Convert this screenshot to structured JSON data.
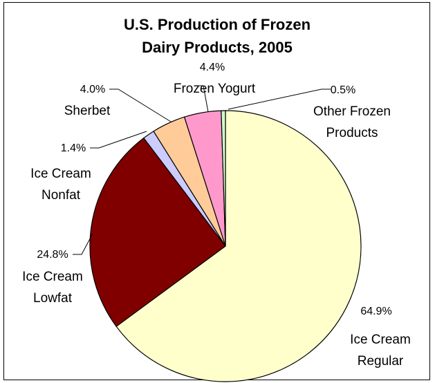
{
  "chart_data": {
    "type": "pie",
    "title": "U.S. Production of Frozen Dairy Products, 2005",
    "title_lines": [
      "U.S. Production of Frozen",
      "Dairy Products, 2005"
    ],
    "start_angle_deg": 0,
    "direction": "clockwise",
    "slices": [
      {
        "label": "Ice Cream Regular",
        "label_lines": [
          "Ice Cream",
          "Regular"
        ],
        "value": 64.9,
        "pct_label": "64.9%",
        "color": "#FFFFCC"
      },
      {
        "label": "Ice Cream Lowfat",
        "label_lines": [
          "Ice Cream",
          "Lowfat"
        ],
        "value": 24.8,
        "pct_label": "24.8%",
        "color": "#800000"
      },
      {
        "label": "Ice Cream Nonfat",
        "label_lines": [
          "Ice Cream",
          "Nonfat"
        ],
        "value": 1.4,
        "pct_label": "1.4%",
        "color": "#CCCCFF"
      },
      {
        "label": "Sherbet",
        "label_lines": [
          "Sherbet"
        ],
        "value": 4.0,
        "pct_label": "4.0%",
        "color": "#FFCC99"
      },
      {
        "label": "Frozen Yogurt",
        "label_lines": [
          "Frozen Yogurt"
        ],
        "value": 4.4,
        "pct_label": "4.4%",
        "color": "#FF99CC"
      },
      {
        "label": "Other Frozen Products",
        "label_lines": [
          "Other Frozen",
          "Products"
        ],
        "value": 0.5,
        "pct_label": "0.5%",
        "color": "#CCFFCC"
      }
    ],
    "legend": "none"
  }
}
